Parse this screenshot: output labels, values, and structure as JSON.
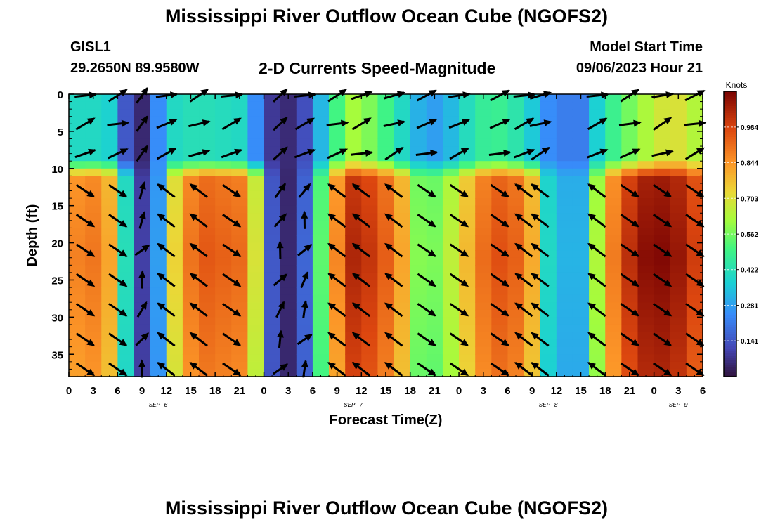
{
  "header": {
    "title": "Mississippi River Outflow Ocean Cube (NGOFS2)",
    "station_id": "GISL1",
    "location": "29.2650N  89.9580W",
    "subtitle": "2-D Currents Speed-Magnitude",
    "model_start_label": "Model Start Time",
    "model_start_time": "09/06/2023 Hour 21"
  },
  "footer": {
    "title": "Mississippi River Outflow Ocean Cube (NGOFS2)"
  },
  "chart_data": {
    "type": "heatmap",
    "title": "2-D Currents Speed-Magnitude",
    "xlabel": "Forecast Time(Z)",
    "ylabel": "Depth (ft)",
    "x_range_hours": [
      0,
      78
    ],
    "ylim": [
      0,
      38
    ],
    "y_inverted": true,
    "x_tick_labels": [
      "0",
      "3",
      "6",
      "9",
      "12",
      "15",
      "18",
      "21",
      "0",
      "3",
      "6",
      "9",
      "12",
      "15",
      "18",
      "21",
      "0",
      "3",
      "6",
      "9",
      "12",
      "15",
      "18",
      "21",
      "0",
      "3",
      "6"
    ],
    "y_ticks": [
      0,
      5,
      10,
      15,
      20,
      25,
      30,
      35
    ],
    "date_labels": [
      {
        "label": "SEP 6",
        "hour": 11
      },
      {
        "label": "SEP 7",
        "hour": 35
      },
      {
        "label": "SEP 8",
        "hour": 59
      },
      {
        "label": "SEP 9",
        "hour": 75
      }
    ],
    "colorbar": {
      "unit": "Knots",
      "min": 0,
      "max": 1.125,
      "ticks": [
        0.141,
        0.281,
        0.422,
        0.562,
        0.703,
        0.844,
        0.984
      ],
      "tick_labels": [
        "0.141",
        "0.281",
        "0.422",
        "0.562",
        "0.703",
        "0.844",
        "0.984"
      ]
    },
    "speed_profile": {
      "description": "approximate surface-layer and subsurface-layer speed by forecast hour",
      "hours": [
        0,
        1,
        3,
        5,
        6,
        7,
        8,
        9,
        11,
        12,
        14,
        17,
        21,
        23,
        24,
        26,
        28,
        30,
        32,
        35,
        38,
        41,
        42,
        44,
        46,
        48,
        52,
        56,
        58,
        59,
        61,
        63,
        64,
        66,
        70,
        74,
        76,
        78
      ],
      "surface": [
        0.4,
        0.4,
        0.4,
        0.38,
        0.3,
        0.15,
        0.05,
        0.05,
        0.25,
        0.38,
        0.42,
        0.42,
        0.4,
        0.25,
        0.12,
        0.05,
        0.06,
        0.2,
        0.45,
        0.62,
        0.55,
        0.4,
        0.35,
        0.28,
        0.28,
        0.38,
        0.5,
        0.42,
        0.3,
        0.25,
        0.22,
        0.22,
        0.3,
        0.45,
        0.6,
        0.72,
        0.68,
        0.6
      ],
      "subsurface": [
        0.82,
        0.88,
        0.9,
        0.82,
        0.6,
        0.42,
        0.22,
        0.1,
        0.28,
        0.6,
        0.88,
        0.95,
        0.92,
        0.7,
        0.25,
        0.05,
        0.05,
        0.3,
        0.78,
        1.05,
        1.0,
        0.82,
        0.62,
        0.55,
        0.6,
        0.72,
        0.98,
        0.92,
        0.7,
        0.4,
        0.32,
        0.32,
        0.45,
        0.82,
        1.1,
        1.12,
        1.05,
        0.95
      ]
    },
    "vector_rows_depth_ft": [
      0,
      4,
      8,
      13,
      17,
      21,
      25,
      29,
      33,
      37
    ],
    "vector_columns_hour": [
      2,
      6,
      9,
      12,
      16,
      20,
      26,
      29,
      33,
      36,
      40,
      44,
      48,
      53,
      56,
      58,
      65,
      69,
      73,
      77
    ],
    "vector_direction_hint": "surface flows eastward; subsurface alternates southeast (ebb) and northwest (flood)"
  }
}
